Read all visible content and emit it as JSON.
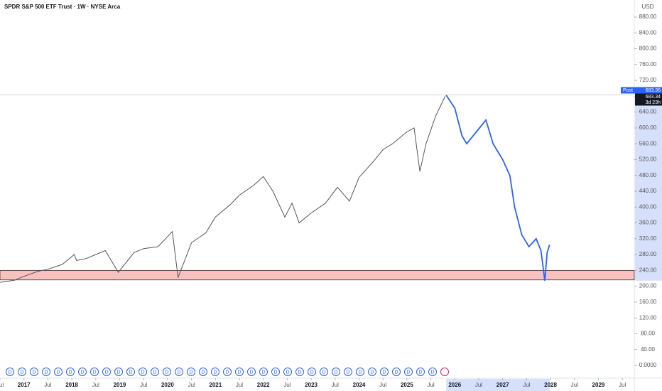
{
  "chart_data": {
    "type": "line",
    "title": "SPDR S&P 500 ETF Trust · 1W · NYSE Arca",
    "currency": "USD",
    "xlim": [
      2016.5,
      2029.75
    ],
    "ylim": [
      0,
      880
    ],
    "xticks": [
      {
        "value": 2016.5,
        "label": "Jul"
      },
      2017,
      {
        "value": 2017.5,
        "label": "Jul"
      },
      2018,
      {
        "value": 2018.5,
        "label": "Jul"
      },
      2019,
      {
        "value": 2019.5,
        "label": "Jul"
      },
      2020,
      {
        "value": 2020.5,
        "label": "Jul"
      },
      2021,
      {
        "value": 2021.5,
        "label": "Jul"
      },
      2022,
      {
        "value": 2022.5,
        "label": "Jul"
      },
      2023,
      {
        "value": 2023.5,
        "label": "Jul"
      },
      2024,
      {
        "value": 2024.5,
        "label": "Jul"
      },
      2025,
      {
        "value": 2025.5,
        "label": "Jul"
      },
      2026,
      {
        "value": 2026.5,
        "label": "Jul"
      },
      2027,
      {
        "value": 2027.5,
        "label": "Jul"
      },
      2028,
      {
        "value": 2028.5,
        "label": "Jul"
      },
      2029,
      {
        "value": 2029.5,
        "label": "Jul"
      }
    ],
    "yticks": [
      {
        "value": 0,
        "label": "0.0000"
      },
      {
        "value": 40,
        "label": "40.00"
      },
      {
        "value": 80,
        "label": "80.00"
      },
      {
        "value": 120,
        "label": "120.00"
      },
      {
        "value": 160,
        "label": "160.00"
      },
      {
        "value": 200,
        "label": "200.00"
      },
      {
        "value": 240,
        "label": "240.00"
      },
      {
        "value": 280,
        "label": "280.00"
      },
      {
        "value": 320,
        "label": "320.00"
      },
      {
        "value": 360,
        "label": "360.00"
      },
      {
        "value": 400,
        "label": "400.00"
      },
      {
        "value": 440,
        "label": "440.00"
      },
      {
        "value": 480,
        "label": "480.00"
      },
      {
        "value": 520,
        "label": "520.00"
      },
      {
        "value": 560,
        "label": "560.00"
      },
      {
        "value": 600,
        "label": "600.00"
      },
      {
        "value": 640,
        "label": "640.00"
      },
      {
        "value": 680,
        "label": "680.00"
      },
      {
        "value": 720,
        "label": "720.00"
      },
      {
        "value": 760,
        "label": "760.00"
      },
      {
        "value": 800,
        "label": "800.00"
      },
      {
        "value": 840,
        "label": "840.00"
      },
      {
        "value": 880,
        "label": "880.00"
      }
    ],
    "series": [
      {
        "color": "#555555",
        "x": [
          2016.5,
          2016.8,
          2017,
          2017.3,
          2017.5,
          2017.8,
          2018.05,
          2018.1,
          2018.3,
          2018.7,
          2018.97,
          2019.3,
          2019.5,
          2019.8,
          2020.1,
          2020.22,
          2020.5,
          2020.8,
          2021,
          2021.3,
          2021.5,
          2021.8,
          2022,
          2022.2,
          2022.45,
          2022.6,
          2022.75,
          2023,
          2023.3,
          2023.55,
          2023.8,
          2024,
          2024.3,
          2024.5,
          2024.7,
          2025,
          2025.15,
          2025.27,
          2025.4,
          2025.6,
          2025.8
        ],
        "values": [
          210,
          215,
          225,
          238,
          243,
          255,
          280,
          265,
          270,
          290,
          235,
          285,
          295,
          300,
          338,
          222,
          310,
          335,
          375,
          405,
          430,
          455,
          477,
          440,
          375,
          410,
          360,
          385,
          410,
          450,
          415,
          475,
          515,
          545,
          560,
          590,
          600,
          490,
          560,
          630,
          680
        ]
      },
      {
        "color": "#2962ff",
        "x": [
          2025.82,
          2026,
          2026.15,
          2026.25,
          2026.45,
          2026.65,
          2026.8,
          2027,
          2027.15,
          2027.25,
          2027.4,
          2027.55,
          2027.7,
          2027.8,
          2027.88,
          2027.93,
          2027.98
        ],
        "values": [
          683,
          650,
          580,
          560,
          590,
          620,
          560,
          520,
          480,
          400,
          330,
          300,
          320,
          290,
          214,
          285,
          305
        ]
      }
    ],
    "support_zone": [
      216,
      240
    ],
    "last_price": {
      "tag": "Post",
      "value": 683.36
    },
    "close_price": 683.34,
    "countdown": "3d 23h",
    "dividend_marker": "D"
  }
}
